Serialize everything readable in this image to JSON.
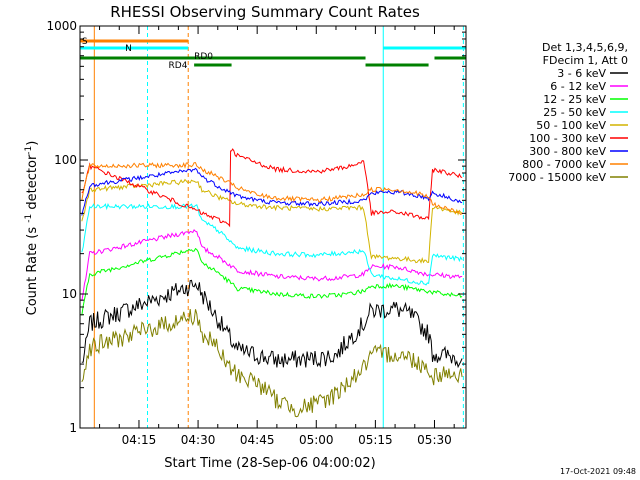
{
  "chart_data": {
    "type": "line",
    "title": "RHESSI Observing Summary Count Rates",
    "xlabel": "Start Time (28-Sep-06 04:00:02)",
    "ylabel": "Count Rate (s⁻¹ detector⁻¹)",
    "xlim": [
      "04:00:02",
      "05:38:00"
    ],
    "ylim": [
      1,
      1000
    ],
    "yscale": "log",
    "x_ticks": [
      "04:15",
      "04:30",
      "04:45",
      "05:00",
      "05:15",
      "05:30"
    ],
    "y_ticks": [
      "1",
      "10",
      "100",
      "1000"
    ],
    "legend": {
      "placement": "right",
      "header": [
        "Det 1,3,4,5,6,9,",
        "FDecim 1, Att 0"
      ],
      "entries": [
        {
          "label": "3 - 6 keV",
          "color": "#000000"
        },
        {
          "label": "6 - 12 keV",
          "color": "#ff00ff"
        },
        {
          "label": "12 - 25 keV",
          "color": "#00ff00"
        },
        {
          "label": "25 - 50 keV",
          "color": "#00ffff"
        },
        {
          "label": "50 - 100 keV",
          "color": "#d2b400"
        },
        {
          "label": "100 - 300 keV",
          "color": "#ff0000"
        },
        {
          "label": "300 - 800 keV",
          "color": "#0000ff"
        },
        {
          "label": "800 - 7000 keV",
          "color": "#ff8000"
        },
        {
          "label": "7000 - 15000 keV",
          "color": "#808000"
        }
      ]
    },
    "series": [
      {
        "name": "3 - 6 keV",
        "color": "#000000",
        "x": [
          "04:00:30",
          "04:01:30",
          "04:02:30",
          "04:29:40",
          "04:31:00",
          "04:35:00",
          "04:40:00",
          "04:50:00",
          "05:00:00",
          "05:05:00",
          "05:08:00",
          "05:12:00",
          "05:14:00",
          "05:20:00",
          "05:24:00",
          "05:28:30",
          "05:29:30",
          "05:32:00",
          "05:35:00",
          "05:37:00"
        ],
        "y": [
          3,
          4,
          6,
          12,
          10,
          6.5,
          3.8,
          3.2,
          3.3,
          3.5,
          4.5,
          6,
          7.5,
          7.8,
          7,
          5,
          3.6,
          3.5,
          3.4,
          3.3
        ]
      },
      {
        "name": "6 - 12 keV",
        "color": "#ff00ff",
        "x": [
          "04:00:30",
          "04:01:30",
          "04:02:30",
          "04:29:40",
          "04:31:00",
          "04:35:00",
          "04:40:00",
          "04:50:00",
          "05:00:00",
          "05:05:00",
          "05:08:00",
          "05:12:00",
          "05:14:00",
          "05:20:00",
          "05:24:00",
          "05:28:30",
          "05:29:30",
          "05:32:00",
          "05:35:00",
          "05:37:00"
        ],
        "y": [
          9,
          13,
          20,
          30,
          22,
          19,
          15,
          13.5,
          13,
          13.2,
          13.5,
          14,
          16,
          16,
          15,
          14,
          14,
          13.8,
          13.5,
          13.5
        ]
      },
      {
        "name": "12 - 25 keV",
        "color": "#00ff00",
        "x": [
          "04:00:30",
          "04:01:30",
          "04:02:30",
          "04:29:40",
          "04:31:00",
          "04:35:00",
          "04:40:00",
          "04:50:00",
          "05:00:00",
          "05:05:00",
          "05:08:00",
          "05:12:00",
          "05:14:00",
          "05:20:00",
          "05:24:00",
          "05:28:30",
          "05:29:30",
          "05:32:00",
          "05:35:00",
          "05:37:00"
        ],
        "y": [
          7,
          10,
          14,
          22,
          17,
          14.5,
          11,
          10,
          9.6,
          9.8,
          10,
          10.5,
          11.5,
          11.5,
          11,
          10.5,
          10.3,
          10,
          9.8,
          9.6
        ]
      },
      {
        "name": "25 - 50 keV",
        "color": "#00ffff",
        "x": [
          "04:00:30",
          "04:01:30",
          "04:02:30",
          "04:29:40",
          "04:31:00",
          "04:35:00",
          "04:40:00",
          "04:50:00",
          "05:00:00",
          "05:05:00",
          "05:08:00",
          "05:12:00",
          "05:14:00",
          "05:20:00",
          "05:24:00",
          "05:28:30",
          "05:29:30",
          "05:32:00",
          "05:35:00",
          "05:37:00"
        ],
        "y": [
          20,
          30,
          45,
          45,
          35,
          30,
          22,
          20,
          19.5,
          20,
          20.5,
          21,
          14,
          13,
          12.5,
          12,
          19.5,
          19,
          18.5,
          18
        ]
      },
      {
        "name": "50 - 100 keV",
        "color": "#d2b400",
        "x": [
          "04:00:30",
          "04:01:30",
          "04:02:30",
          "04:29:40",
          "04:31:00",
          "04:35:00",
          "04:40:00",
          "04:50:00",
          "05:00:00",
          "05:05:00",
          "05:08:00",
          "05:12:00",
          "05:14:00",
          "05:20:00",
          "05:24:00",
          "05:28:30",
          "05:29:30",
          "05:32:00",
          "05:35:00",
          "05:37:00"
        ],
        "y": [
          35,
          45,
          60,
          70,
          60,
          53,
          47,
          44,
          43,
          43.5,
          44,
          44,
          19,
          18.5,
          18,
          17.5,
          45,
          43,
          41,
          40
        ]
      },
      {
        "name": "100 - 300 keV",
        "color": "#ff0000",
        "x": [
          "04:00:30",
          "04:01:30",
          "04:02:30",
          "04:29:40",
          "04:31:00",
          "04:35:00",
          "04:38:00",
          "04:38:30",
          "04:40:00",
          "04:45:00",
          "04:50:00",
          "05:00:00",
          "05:05:00",
          "05:10:00",
          "05:12:00",
          "05:14:00",
          "05:20:00",
          "05:24:00",
          "05:28:30",
          "05:29:30",
          "05:32:00",
          "05:35:00",
          "05:37:00"
        ],
        "y": [
          55,
          70,
          90,
          42,
          40,
          36,
          33,
          120,
          108,
          95,
          85,
          82,
          86,
          92,
          100,
          40,
          41,
          39,
          36,
          85,
          82,
          78,
          74
        ]
      },
      {
        "name": "300 - 800 keV",
        "color": "#0000ff",
        "x": [
          "04:00:30",
          "04:01:30",
          "04:02:30",
          "04:29:40",
          "04:31:00",
          "04:35:00",
          "04:40:00",
          "04:45:00",
          "04:50:00",
          "05:00:00",
          "05:05:00",
          "05:12:00",
          "05:14:00",
          "05:18:00",
          "05:22:00",
          "05:26:00",
          "05:28:30",
          "05:29:30",
          "05:32:00",
          "05:35:00",
          "05:37:00"
        ],
        "y": [
          40,
          50,
          65,
          85,
          75,
          64,
          54,
          50,
          48,
          47,
          48,
          50,
          56,
          58,
          57,
          54,
          52,
          57,
          54,
          51,
          48
        ]
      },
      {
        "name": "800 - 7000 keV",
        "color": "#ff8000",
        "x": [
          "04:00:30",
          "04:01:30",
          "04:02:30",
          "04:29:40",
          "04:31:00",
          "04:35:00",
          "04:40:00",
          "04:45:00",
          "04:50:00",
          "05:00:00",
          "05:05:00",
          "05:12:00",
          "05:14:00",
          "05:18:00",
          "05:22:00",
          "05:26:00",
          "05:28:30",
          "05:29:30",
          "05:32:00",
          "05:35:00",
          "05:37:00"
        ],
        "y": [
          50,
          70,
          90,
          92,
          85,
          75,
          62,
          55,
          52,
          50,
          52,
          55,
          60,
          61,
          59,
          56,
          53,
          47,
          44,
          42,
          40
        ]
      },
      {
        "name": "7000 - 15000 keV",
        "color": "#808000",
        "x": [
          "04:00:30",
          "04:01:30",
          "04:02:30",
          "04:29:40",
          "04:31:00",
          "04:35:00",
          "04:37:00",
          "04:40:00",
          "04:45:00",
          "04:50:00",
          "04:55:00",
          "05:00:00",
          "05:05:00",
          "05:08:00",
          "05:12:00",
          "05:14:00",
          "05:20:00",
          "05:24:00",
          "05:28:30",
          "05:29:30",
          "05:32:00",
          "05:35:00",
          "05:37:00"
        ],
        "y": [
          2.5,
          3,
          4,
          7,
          5,
          4,
          3,
          2.5,
          2.2,
          1.6,
          1.4,
          1.5,
          1.8,
          2.2,
          2.8,
          3.5,
          3.6,
          3.3,
          2.8,
          2.4,
          2.6,
          2.5,
          2.4
        ]
      }
    ],
    "flag_bars": [
      {
        "label": "S",
        "color": "#ff8000",
        "segments": [
          [
            "04:00:02",
            "04:27:30"
          ]
        ]
      },
      {
        "label": "N",
        "color": "#00ffff",
        "segments": [
          [
            "04:00:02",
            "04:27:30"
          ],
          [
            "05:17:00",
            "05:38:00"
          ]
        ]
      },
      {
        "label": "RD0",
        "color": "#008000",
        "segments": [
          [
            "04:00:02",
            "05:12:30"
          ],
          [
            "05:30:00",
            "05:38:00"
          ]
        ]
      },
      {
        "label": "RD4",
        "color": "#008000",
        "segments": [
          [
            "04:29:00",
            "04:38:30"
          ],
          [
            "05:12:30",
            "05:28:30"
          ]
        ]
      }
    ],
    "vertical_lines": [
      {
        "x": "04:00:02",
        "color": "#00ffff",
        "style": "solid"
      },
      {
        "x": "04:03:40",
        "color": "#ff8000",
        "style": "solid"
      },
      {
        "x": "04:17:10",
        "color": "#00ffff",
        "style": "dashed"
      },
      {
        "x": "04:27:30",
        "color": "#ff8000",
        "style": "dashed"
      },
      {
        "x": "05:17:00",
        "color": "#00ffff",
        "style": "solid"
      },
      {
        "x": "05:37:20",
        "color": "#00ffff",
        "style": "dashed"
      }
    ],
    "footer_date": "17-Oct-2021 09:48"
  }
}
